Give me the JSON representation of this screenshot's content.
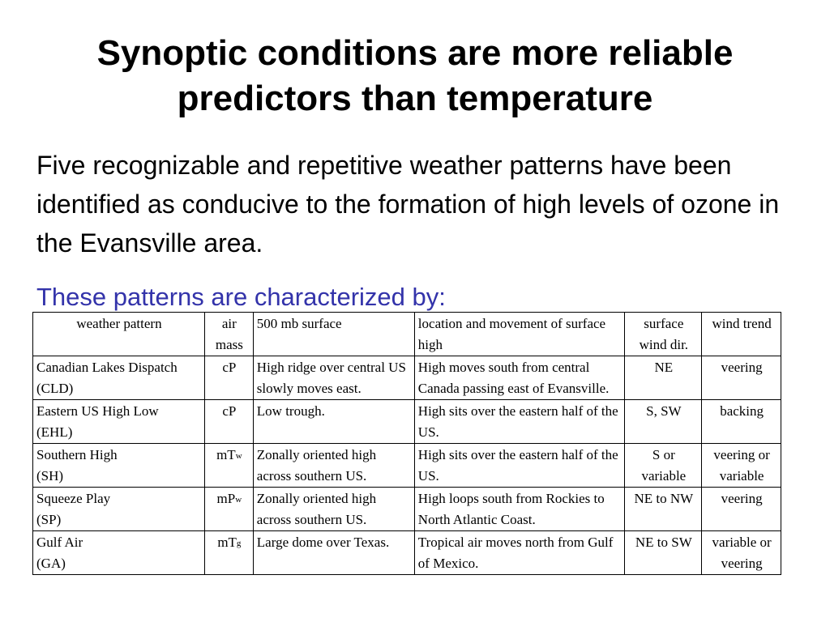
{
  "slide": {
    "title_line1": "Synoptic conditions are more reliable",
    "title_line2": "predictors than temperature",
    "paragraph": "Five recognizable and repetitive weather patterns have been identified as conducive to the formation of high levels of ozone in the Evansville area.",
    "subheading": "These patterns are characterized by:"
  },
  "table": {
    "headers": {
      "pattern": "weather pattern",
      "air_mass_line1": "air",
      "air_mass_line2": "mass",
      "surface_500mb": "500 mb surface",
      "location": "location and movement of surface high",
      "wind_dir_line1": "surface",
      "wind_dir_line2": "wind dir.",
      "trend": "wind trend"
    },
    "rows": [
      {
        "pattern_name": "Canadian Lakes Dispatch",
        "pattern_abbr": "(CLD)",
        "air_mass_main": "cP",
        "air_mass_sub": "",
        "surface_500mb": "High ridge over central US slowly moves east.",
        "location": "High moves south from central Canada passing east of Evansville.",
        "wind_dir": "NE",
        "trend": "veering"
      },
      {
        "pattern_name": "Eastern US High Low",
        "pattern_abbr": "(EHL)",
        "air_mass_main": "cP",
        "air_mass_sub": "",
        "surface_500mb": "Low trough.",
        "location": "High sits over the eastern half of the US.",
        "wind_dir": "S, SW",
        "trend": "backing"
      },
      {
        "pattern_name": "Southern High",
        "pattern_abbr": "(SH)",
        "air_mass_main": "mT",
        "air_mass_sub": "w",
        "surface_500mb": "Zonally oriented high across southern US.",
        "location": "High sits over the eastern half of the US.",
        "wind_dir": "S or variable",
        "trend": "veering or variable"
      },
      {
        "pattern_name": "Squeeze Play",
        "pattern_abbr": "(SP)",
        "air_mass_main": "mP",
        "air_mass_sub": "w",
        "surface_500mb": "Zonally oriented high across southern US.",
        "location": "High loops south from Rockies to North Atlantic Coast.",
        "wind_dir": "NE to NW",
        "trend": "veering"
      },
      {
        "pattern_name": "Gulf Air",
        "pattern_abbr": "(GA)",
        "air_mass_main": "mT",
        "air_mass_sub": "g",
        "surface_500mb": "Large dome over Texas.",
        "location": "Tropical air moves north from Gulf of Mexico.",
        "wind_dir": "NE to SW",
        "trend": "variable or veering"
      }
    ]
  }
}
